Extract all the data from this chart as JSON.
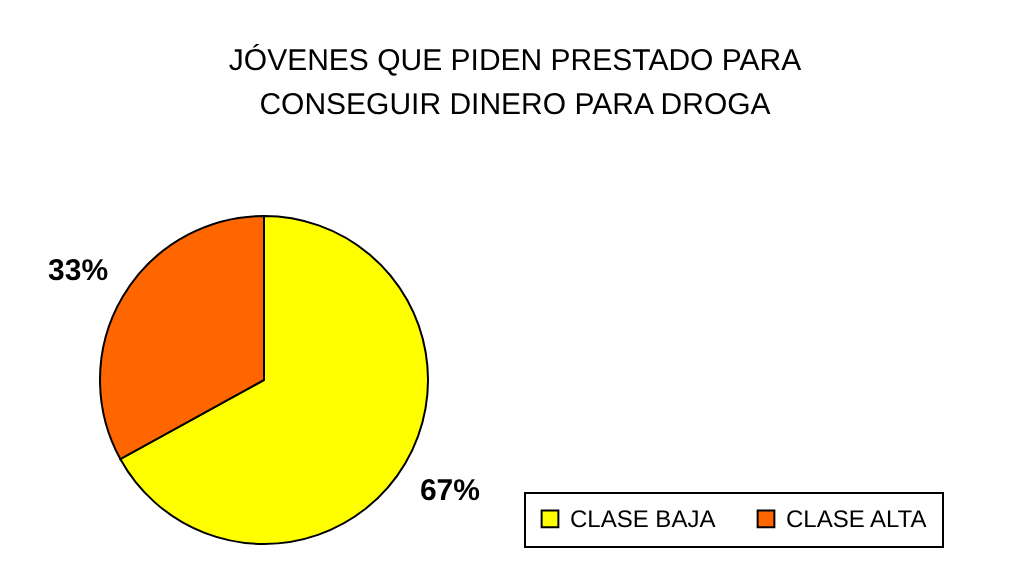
{
  "chart_data": {
    "type": "pie",
    "title": "JÓVENES QUE PIDEN PRESTADO PARA\nCONSEGUIR DINERO PARA DROGA",
    "categories": [
      "CLASE BAJA",
      "CLASE ALTA"
    ],
    "values": [
      67,
      33
    ],
    "colors": [
      "#ffff00",
      "#ff6600"
    ],
    "value_labels": [
      "67%",
      "33%"
    ],
    "legend": "bottom right"
  }
}
